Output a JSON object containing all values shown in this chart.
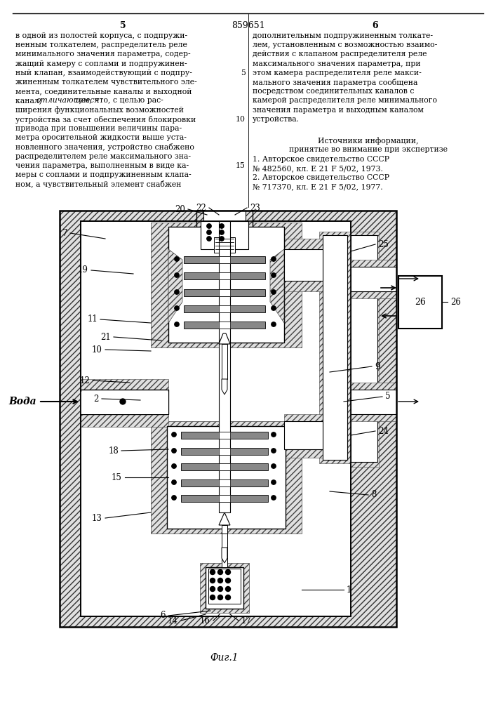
{
  "page_number_left": "5",
  "page_number_right": "6",
  "patent_number": "859651",
  "left_column_text": [
    "в одной из полостей корпуса, с подпружи-",
    "ненным толкателем, распределитель реле",
    "минимального значения параметра, содер-",
    "жащий камеру с соплами и подпружинен-",
    "ный клапан, взаимодействующий с подпру-",
    "жиненным толкателем чувствительного эле-",
    "мента, соединительные каналы и выходной",
    "канал, отличающееся тем, что, с целью рас-",
    "ширения функциональных возможностей",
    "устройства за счет обеспечения блокировки",
    "привода при повышении величины пара-",
    "метра оросительной жидкости выше уста-",
    "новленного значения, устройство снабжено",
    "распределителем реле максимального зна-",
    "чения параметра, выполненным в виде ка-",
    "меры с соплами и подпружиненным клапа-",
    "ном, а чувствительный элемент снабжен"
  ],
  "right_column_text_top": [
    "дополнительным подпружиненным толкате-",
    "лем, установленным с возможностью взаимо-",
    "действия с клапаном распределителя реле",
    "максимального значения параметра, при",
    "этом камера распределителя реле макси-",
    "мального значения параметра сообщена",
    "посредством соединительных каналов с",
    "камерой распределителя реле минимального",
    "значения параметра и выходным каналом",
    "устройства."
  ],
  "sources_header": "Источники информации,",
  "sources_subheader": "принятые во внимание при экспертизе",
  "source1": "1. Авторское свидетельство СССР",
  "source1b": "№ 482560, кл. Е 21 F 5/02, 1973.",
  "source2": "2. Авторское свидетельство СССР",
  "source2b": "№ 717370, кл. Е 21 F 5/02, 1977.",
  "fig_caption": "Фиг.1",
  "bg_color": "#ffffff",
  "text_color": "#000000",
  "voda_label": "Вода"
}
